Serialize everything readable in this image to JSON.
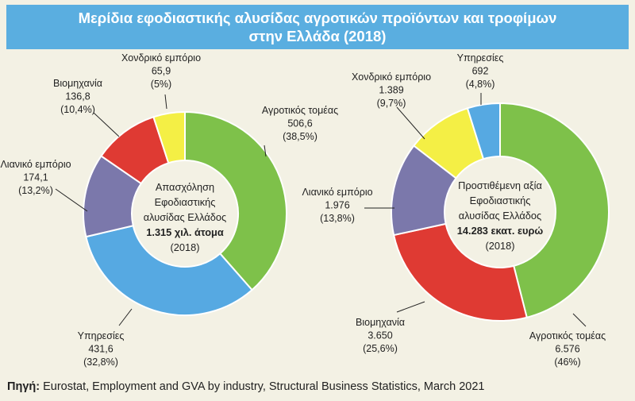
{
  "header": {
    "title_line1": "Μερίδια εφοδιαστικής αλυσίδας αγροτικών προϊόντων και τροφίμων",
    "title_line2": "στην Ελλάδα (2018)"
  },
  "colors": {
    "green": "#7ec14a",
    "blue": "#56a9e2",
    "purple": "#7b78ab",
    "red": "#df3a33",
    "yellow": "#f4ef45",
    "leader": "#222222"
  },
  "chart_data": [
    {
      "type": "pie",
      "variant": "donut",
      "center": {
        "line1": "Απασχόληση",
        "line2": "Εφοδιαστικής",
        "line3": "αλυσίδας Ελλάδος",
        "line4": "1.315 χιλ. άτομα",
        "line5": "(2018)"
      },
      "slices": [
        {
          "name": "Αγροτικός τομέας",
          "value_label": "506,6",
          "percent_label": "(38,5%)",
          "value": 506.6,
          "percent": 38.5,
          "color": "#7ec14a"
        },
        {
          "name": "Υπηρεσίες",
          "value_label": "431,6",
          "percent_label": "(32,8%)",
          "value": 431.6,
          "percent": 32.8,
          "color": "#56a9e2"
        },
        {
          "name": "Λιανικό εμπόριο",
          "value_label": "174,1",
          "percent_label": "(13,2%)",
          "value": 174.1,
          "percent": 13.2,
          "color": "#7b78ab"
        },
        {
          "name": "Βιομηχανία",
          "value_label": "136,8",
          "percent_label": "(10,4%)",
          "value": 136.8,
          "percent": 10.4,
          "color": "#df3a33"
        },
        {
          "name": "Χονδρικό εμπόριο",
          "value_label": "65,9",
          "percent_label": "(5%)",
          "value": 65.9,
          "percent": 5.0,
          "color": "#f4ef45"
        }
      ]
    },
    {
      "type": "pie",
      "variant": "donut",
      "center": {
        "line1": "Προστιθέμενη αξία",
        "line2": "Εφοδιαστικής",
        "line3": "αλυσίδας Ελλάδος",
        "line4": "14.283 εκατ. ευρώ",
        "line5": "(2018)"
      },
      "slices": [
        {
          "name": "Αγροτικός τομέας",
          "value_label": "6.576",
          "percent_label": "(46%)",
          "value": 6576,
          "percent": 46.0,
          "color": "#7ec14a"
        },
        {
          "name": "Βιομηχανία",
          "value_label": "3.650",
          "percent_label": "(25,6%)",
          "value": 3650,
          "percent": 25.6,
          "color": "#df3a33"
        },
        {
          "name": "Λιανικό εμπόριο",
          "value_label": "1.976",
          "percent_label": "(13,8%)",
          "value": 1976,
          "percent": 13.8,
          "color": "#7b78ab"
        },
        {
          "name": "Χονδρικό εμπόριο",
          "value_label": "1.389",
          "percent_label": "(9,7%)",
          "value": 1389,
          "percent": 9.7,
          "color": "#f4ef45"
        },
        {
          "name": "Υπηρεσίες",
          "value_label": "692",
          "percent_label": "(4,8%)",
          "value": 692,
          "percent": 4.8,
          "color": "#56a9e2"
        }
      ]
    }
  ],
  "footer": {
    "source_label": "Πηγή:",
    "source_text": " Eurostat, Employment and GVA by industry, Structural Business Statistics, March 2021"
  }
}
